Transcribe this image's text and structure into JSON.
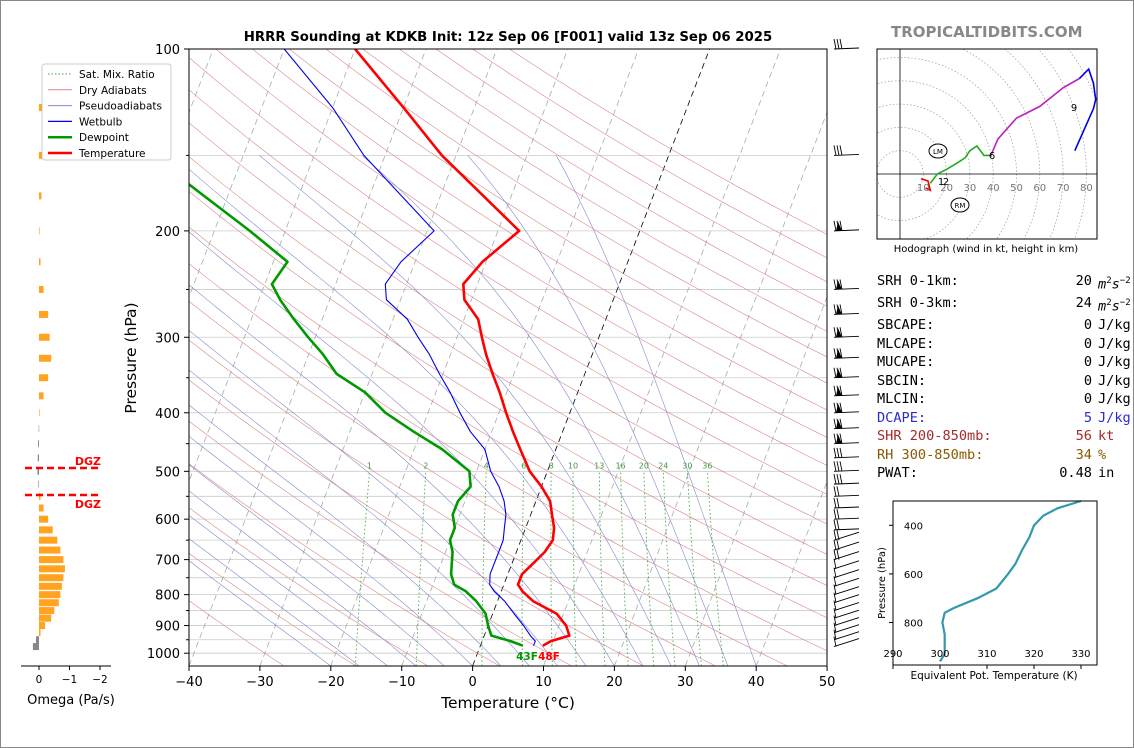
{
  "brand": "TROPICALTIDBITS.COM",
  "skewt": {
    "title": "HRRR Sounding at KDKB Init: 12z Sep 06 [F001] valid 13z Sep 06 2025",
    "xlabel": "Temperature (°C)",
    "ylabel": "Pressure (hPa)",
    "x_ticks": [
      "−40",
      "−30",
      "−20",
      "−10",
      "0",
      "10",
      "20",
      "30",
      "40",
      "50"
    ],
    "y_ticks": [
      "100",
      "200",
      "300",
      "400",
      "500",
      "600",
      "700",
      "800",
      "900",
      "1000"
    ],
    "mixing_ratio_labels": [
      "1",
      "2",
      "4",
      "6",
      "8",
      "10",
      "13",
      "16",
      "20",
      "24",
      "30",
      "36"
    ],
    "sfc_temp_label": "48F",
    "sfc_dew_label": "43F",
    "legend": [
      "Sat. Mix. Ratio",
      "Dry Adiabats",
      "Pseudoadiabats",
      "Wetbulb",
      "Dewpoint",
      "Temperature"
    ],
    "colors": {
      "temperature": "#ff0000",
      "dewpoint": "#009900",
      "wetbulb": "#0000ee",
      "dry": "#d9888c",
      "moist": "#8888cc",
      "mix": "#44aa44"
    }
  },
  "omega": {
    "xlabel": "Omega (Pa/s)",
    "x_ticks": [
      "0",
      "−1",
      "−2"
    ],
    "dgz_label": "DGZ"
  },
  "hodograph": {
    "caption": "Hodograph (wind in kt, height in km)",
    "ring_labels": [
      "10",
      "20",
      "30",
      "40",
      "50",
      "60",
      "70",
      "80"
    ],
    "height_labels": [
      "1",
      "2",
      "6",
      "9"
    ],
    "lm": "LM",
    "rm": "RM"
  },
  "params": [
    {
      "label": "SRH 0-1km:",
      "value": "20",
      "unit": "m2s-2",
      "color": "#000000"
    },
    {
      "label": "SRH 0-3km:",
      "value": "24",
      "unit": "m2s-2",
      "color": "#000000"
    },
    {
      "label": "SBCAPE:",
      "value": "0",
      "unit": "J/kg",
      "color": "#000000"
    },
    {
      "label": "MLCAPE:",
      "value": "0",
      "unit": "J/kg",
      "color": "#000000"
    },
    {
      "label": "MUCAPE:",
      "value": "0",
      "unit": "J/kg",
      "color": "#000000"
    },
    {
      "label": "SBCIN:",
      "value": "0",
      "unit": "J/kg",
      "color": "#000000"
    },
    {
      "label": "MLCIN:",
      "value": "0",
      "unit": "J/kg",
      "color": "#000000"
    },
    {
      "label": "DCAPE:",
      "value": "5",
      "unit": "J/kg",
      "color": "#2b2bcf"
    },
    {
      "label": "SHR 200-850mb:",
      "value": "56",
      "unit": "kt",
      "color": "#a52a2a"
    },
    {
      "label": "RH 300-850mb:",
      "value": "34",
      "unit": "%",
      "color": "#8b5a00"
    },
    {
      "label": "PWAT:",
      "value": "0.48",
      "unit": "in",
      "color": "#000000"
    }
  ],
  "theta_e": {
    "ylabel": "Pressure (hPa)",
    "xlabel": "Equivalent Pot. Temperature (K)",
    "x_ticks": [
      "290",
      "300",
      "310",
      "320",
      "330"
    ],
    "y_ticks": [
      "400",
      "600",
      "800"
    ]
  },
  "chart_data": [
    {
      "type": "line",
      "title": "HRRR Sounding at KDKB Init: 12z Sep 06 [F001] valid 13z Sep 06 2025",
      "xlabel": "Temperature (°C)",
      "ylabel": "Pressure (hPa)",
      "xlim": [
        -40,
        50
      ],
      "ylim": [
        1050,
        100
      ],
      "y_scale": "log",
      "skewed_isotherms": true,
      "series": [
        {
          "name": "Temperature",
          "p": [
            972,
            955,
            935,
            900,
            860,
            820,
            790,
            770,
            740,
            710,
            680,
            650,
            620,
            590,
            560,
            530,
            500,
            460,
            430,
            400,
            370,
            345,
            320,
            300,
            280,
            260,
            245,
            225,
            200,
            150,
            125,
            100
          ],
          "t": [
            8.8,
            9.7,
            12,
            11,
            9,
            5,
            3,
            2,
            2,
            3,
            4,
            4.5,
            4,
            3,
            2,
            0,
            -2.5,
            -5,
            -7,
            -9,
            -11,
            -13,
            -15,
            -16.5,
            -18,
            -21,
            -22,
            -20.5,
            -17,
            -32,
            -40,
            -50
          ]
        },
        {
          "name": "Dewpoint",
          "p": [
            972,
            955,
            935,
            900,
            860,
            820,
            790,
            770,
            740,
            710,
            680,
            650,
            620,
            590,
            560,
            530,
            500,
            460,
            430,
            400,
            370,
            345,
            320,
            300,
            280,
            260,
            245,
            225,
            200,
            150,
            125,
            100
          ],
          "t": [
            6,
            4,
            1,
            0,
            -1,
            -3,
            -5,
            -7,
            -8,
            -8.5,
            -9,
            -10,
            -10,
            -11,
            -11,
            -10,
            -11,
            -16,
            -21,
            -26,
            -30,
            -35,
            -38,
            -41,
            -44,
            -47,
            -49,
            -48,
            -55,
            -73,
            -83,
            -98
          ]
        },
        {
          "name": "Wetbulb",
          "p": [
            972,
            955,
            935,
            900,
            860,
            820,
            790,
            770,
            740,
            710,
            680,
            650,
            620,
            590,
            560,
            530,
            500,
            460,
            430,
            400,
            370,
            345,
            320,
            300,
            280,
            260,
            245,
            225,
            200,
            150,
            125,
            100
          ],
          "t": [
            7.5,
            7.5,
            6.5,
            5,
            3,
            1,
            -1,
            -2,
            -2.5,
            -2.5,
            -2.5,
            -2.5,
            -3,
            -3.5,
            -4.5,
            -6,
            -8,
            -10,
            -13,
            -15.5,
            -18,
            -20.5,
            -23,
            -25.5,
            -28,
            -32,
            -33,
            -32,
            -29,
            -43,
            -50,
            -60
          ]
        }
      ]
    },
    {
      "type": "bar",
      "title": "",
      "xlabel": "Omega (Pa/s)",
      "ylabel": "Pressure (hPa)",
      "xlim": [
        0.2,
        -2.2
      ],
      "p": [
        975,
        950,
        925,
        900,
        875,
        850,
        825,
        800,
        775,
        750,
        725,
        700,
        675,
        650,
        625,
        600,
        575,
        550,
        525,
        500,
        475,
        450,
        425,
        400,
        375,
        350,
        325,
        300,
        275,
        250,
        225,
        200,
        175,
        150,
        125
      ],
      "values": [
        0.2,
        0.1,
        -0.05,
        -0.2,
        -0.4,
        -0.5,
        -0.65,
        -0.7,
        -0.75,
        -0.8,
        -0.85,
        -0.8,
        -0.7,
        -0.6,
        -0.45,
        -0.3,
        -0.15,
        -0.05,
        0.02,
        0.05,
        0.04,
        0.03,
        0.01,
        -0.02,
        -0.15,
        -0.3,
        -0.4,
        -0.35,
        -0.3,
        -0.15,
        -0.05,
        -0.02,
        -0.08,
        -0.1,
        -0.1
      ]
    },
    {
      "type": "line",
      "title": "Hodograph (wind in kt, height in km)",
      "xlabel": "",
      "ylabel": "",
      "xlim": [
        -10,
        85
      ],
      "ylim": [
        -28,
        52
      ],
      "series": [
        {
          "name": "",
          "u": [
            9,
            12,
            13,
            11
          ],
          "v": [
            -2,
            -3,
            -7,
            -6
          ]
        },
        {
          "name": "",
          "u": [
            13,
            16,
            20,
            25,
            28,
            30,
            33,
            36,
            39
          ],
          "v": [
            -4,
            0,
            2,
            5,
            7,
            10,
            12,
            8,
            8
          ]
        },
        {
          "name": "",
          "u": [
            39,
            42,
            50,
            60,
            70,
            77
          ],
          "v": [
            8,
            15,
            24,
            29,
            37,
            41
          ]
        },
        {
          "name": "",
          "u": [
            77,
            81,
            83,
            84,
            83,
            75
          ],
          "v": [
            41,
            45,
            39,
            32,
            28,
            10
          ]
        }
      ]
    },
    {
      "type": "line",
      "title": "",
      "xlabel": "Equivalent Pot. Temperature (K)",
      "ylabel": "Pressure (hPa)",
      "xlim": [
        290,
        332
      ],
      "ylim": [
        975,
        300
      ],
      "series": [
        {
          "name": "",
          "p": [
            960,
            930,
            900,
            850,
            800,
            760,
            740,
            700,
            660,
            600,
            560,
            500,
            450,
            400,
            360,
            330,
            300
          ],
          "x": [
            300,
            301,
            301,
            301,
            300.5,
            301,
            303,
            308,
            312,
            314.5,
            316,
            317.5,
            319,
            320,
            322,
            325,
            330
          ]
        }
      ]
    }
  ]
}
